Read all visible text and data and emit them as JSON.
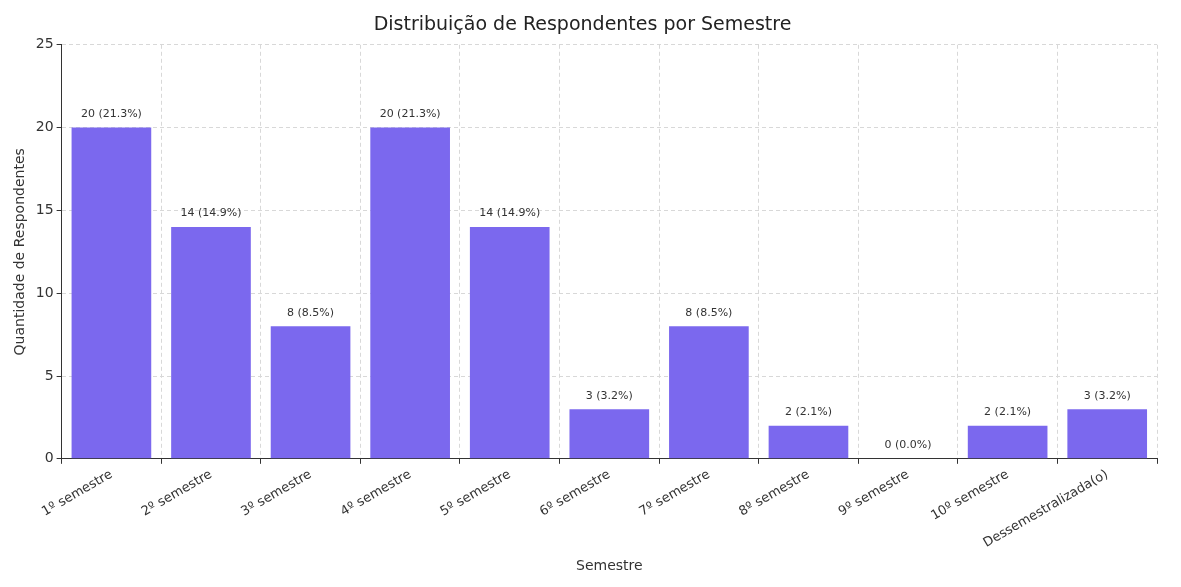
{
  "chart_data": {
    "type": "bar",
    "title": "Distribuição de Respondentes por Semestre",
    "xlabel": "Semestre",
    "ylabel": "Quantidade de Respondentes",
    "categories": [
      "1º semestre",
      "2º semestre",
      "3º semestre",
      "4º semestre",
      "5º semestre",
      "6º semestre",
      "7º semestre",
      "8º semestre",
      "9º semestre",
      "10º semestre",
      "Dessemestralizada(o)"
    ],
    "values": [
      20,
      14,
      8,
      20,
      14,
      3,
      8,
      2,
      0,
      2,
      3
    ],
    "value_labels": [
      "20 (21.3%)",
      "14 (14.9%)",
      "8 (8.5%)",
      "20 (21.3%)",
      "14 (14.9%)",
      "3 (3.2%)",
      "8 (8.5%)",
      "2 (2.1%)",
      "0 (0.0%)",
      "2 (2.1%)",
      "3 (3.2%)"
    ],
    "color": "#7b68ee",
    "ylim": [
      0,
      25
    ],
    "yticks": [
      0,
      5,
      10,
      15,
      20,
      25
    ],
    "grid": true
  }
}
